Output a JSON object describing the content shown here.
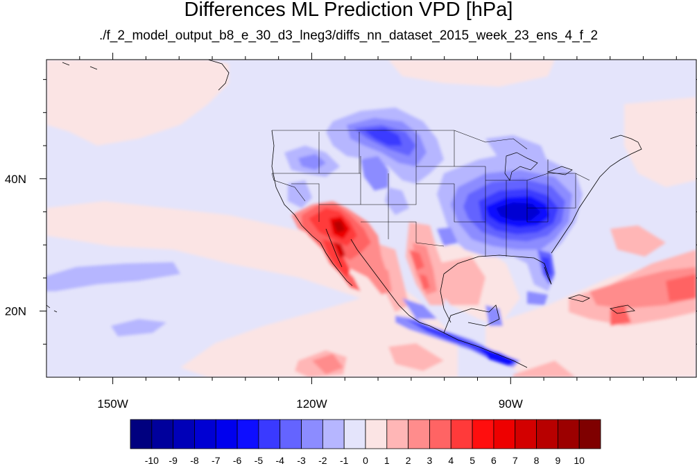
{
  "title": "Differences ML Prediction VPD [hPa]",
  "subtitle": "./f_2_model_output_b8_e_30_d3_lneg3/diffs_nn_dataset_2015_week_23_ens_4_f_2",
  "map": {
    "projection": "cylindrical equidistant",
    "lon_range": [
      -160,
      -62
    ],
    "lat_range": [
      10,
      58
    ],
    "lon_ticks": [
      {
        "value": -150,
        "label": "150W"
      },
      {
        "value": -120,
        "label": "120W"
      },
      {
        "value": -90,
        "label": "90W"
      }
    ],
    "lat_ticks": [
      {
        "value": 40,
        "label": "40N"
      },
      {
        "value": 20,
        "label": "20N"
      }
    ]
  },
  "colorbar": {
    "labels": [
      "-10",
      "-9",
      "-8",
      "-7",
      "-6",
      "-5",
      "-4",
      "-3",
      "-2",
      "-1",
      "0",
      "1",
      "2",
      "3",
      "4",
      "5",
      "6",
      "7",
      "8",
      "9",
      "10"
    ],
    "colors": [
      "#00007f",
      "#00009c",
      "#0000b8",
      "#0000d3",
      "#0000ee",
      "#0e0eff",
      "#3a3aff",
      "#6464ff",
      "#8c8cff",
      "#b6b6ff",
      "#e4e4fb",
      "#fbe4e4",
      "#ffb6b6",
      "#ff8c8c",
      "#ff6464",
      "#ff3a3a",
      "#ff0e0e",
      "#ee0000",
      "#d30000",
      "#b80000",
      "#9c0000",
      "#7f0000"
    ]
  }
}
